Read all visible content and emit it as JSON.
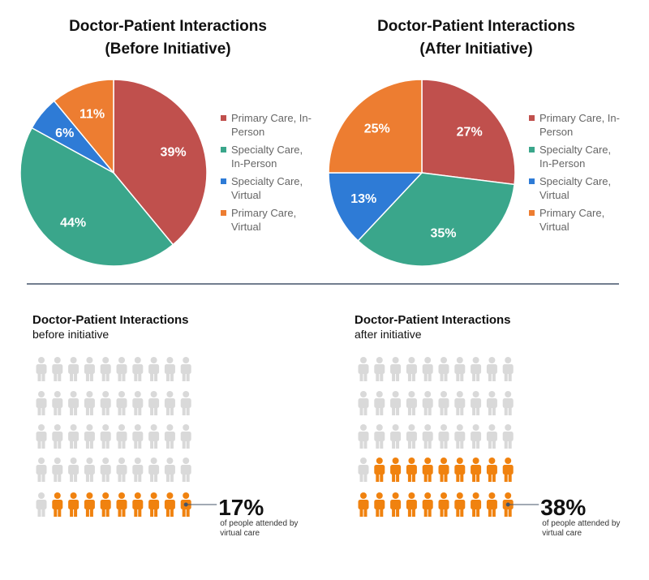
{
  "chart_data": [
    {
      "type": "pie",
      "title": "Doctor-Patient Interactions",
      "subtitle": "(Before Initiative)",
      "categories": [
        "Primary Care, In-Person",
        "Specialty Care, In-Person",
        "Specialty Care, Virtual",
        "Primary Care, Virtual"
      ],
      "values": [
        39,
        44,
        6,
        11
      ],
      "value_labels": [
        "39%",
        "44%",
        "6%",
        "11%"
      ],
      "colors": [
        "#c0504d",
        "#3aa68b",
        "#2e7bd6",
        "#ed7d31"
      ]
    },
    {
      "type": "pie",
      "title": "Doctor-Patient Interactions",
      "subtitle": "(After Initiative)",
      "categories": [
        "Primary Care, In-Person",
        "Specialty Care, In-Person",
        "Specialty Care, Virtual",
        "Primary Care, Virtual"
      ],
      "values": [
        27,
        35,
        13,
        25
      ],
      "value_labels": [
        "27%",
        "35%",
        "13%",
        "25%"
      ],
      "colors": [
        "#c0504d",
        "#3aa68b",
        "#2e7bd6",
        "#ed7d31"
      ]
    },
    {
      "type": "pictograph",
      "title": "Doctor-Patient Interactions",
      "subtitle": "before initiative",
      "value": 17,
      "value_label": "17%",
      "note": "of people attended by virtual care",
      "icons_total": 50,
      "icons_highlighted": 9,
      "color": "#f0820f",
      "base_color": "#d9d9d9"
    },
    {
      "type": "pictograph",
      "title": "Doctor-Patient Interactions",
      "subtitle": "after initiative",
      "value": 38,
      "value_label": "38%",
      "note": "of people attended by virtual care",
      "icons_total": 50,
      "icons_highlighted": 19,
      "color": "#f0820f",
      "base_color": "#d9d9d9"
    }
  ]
}
